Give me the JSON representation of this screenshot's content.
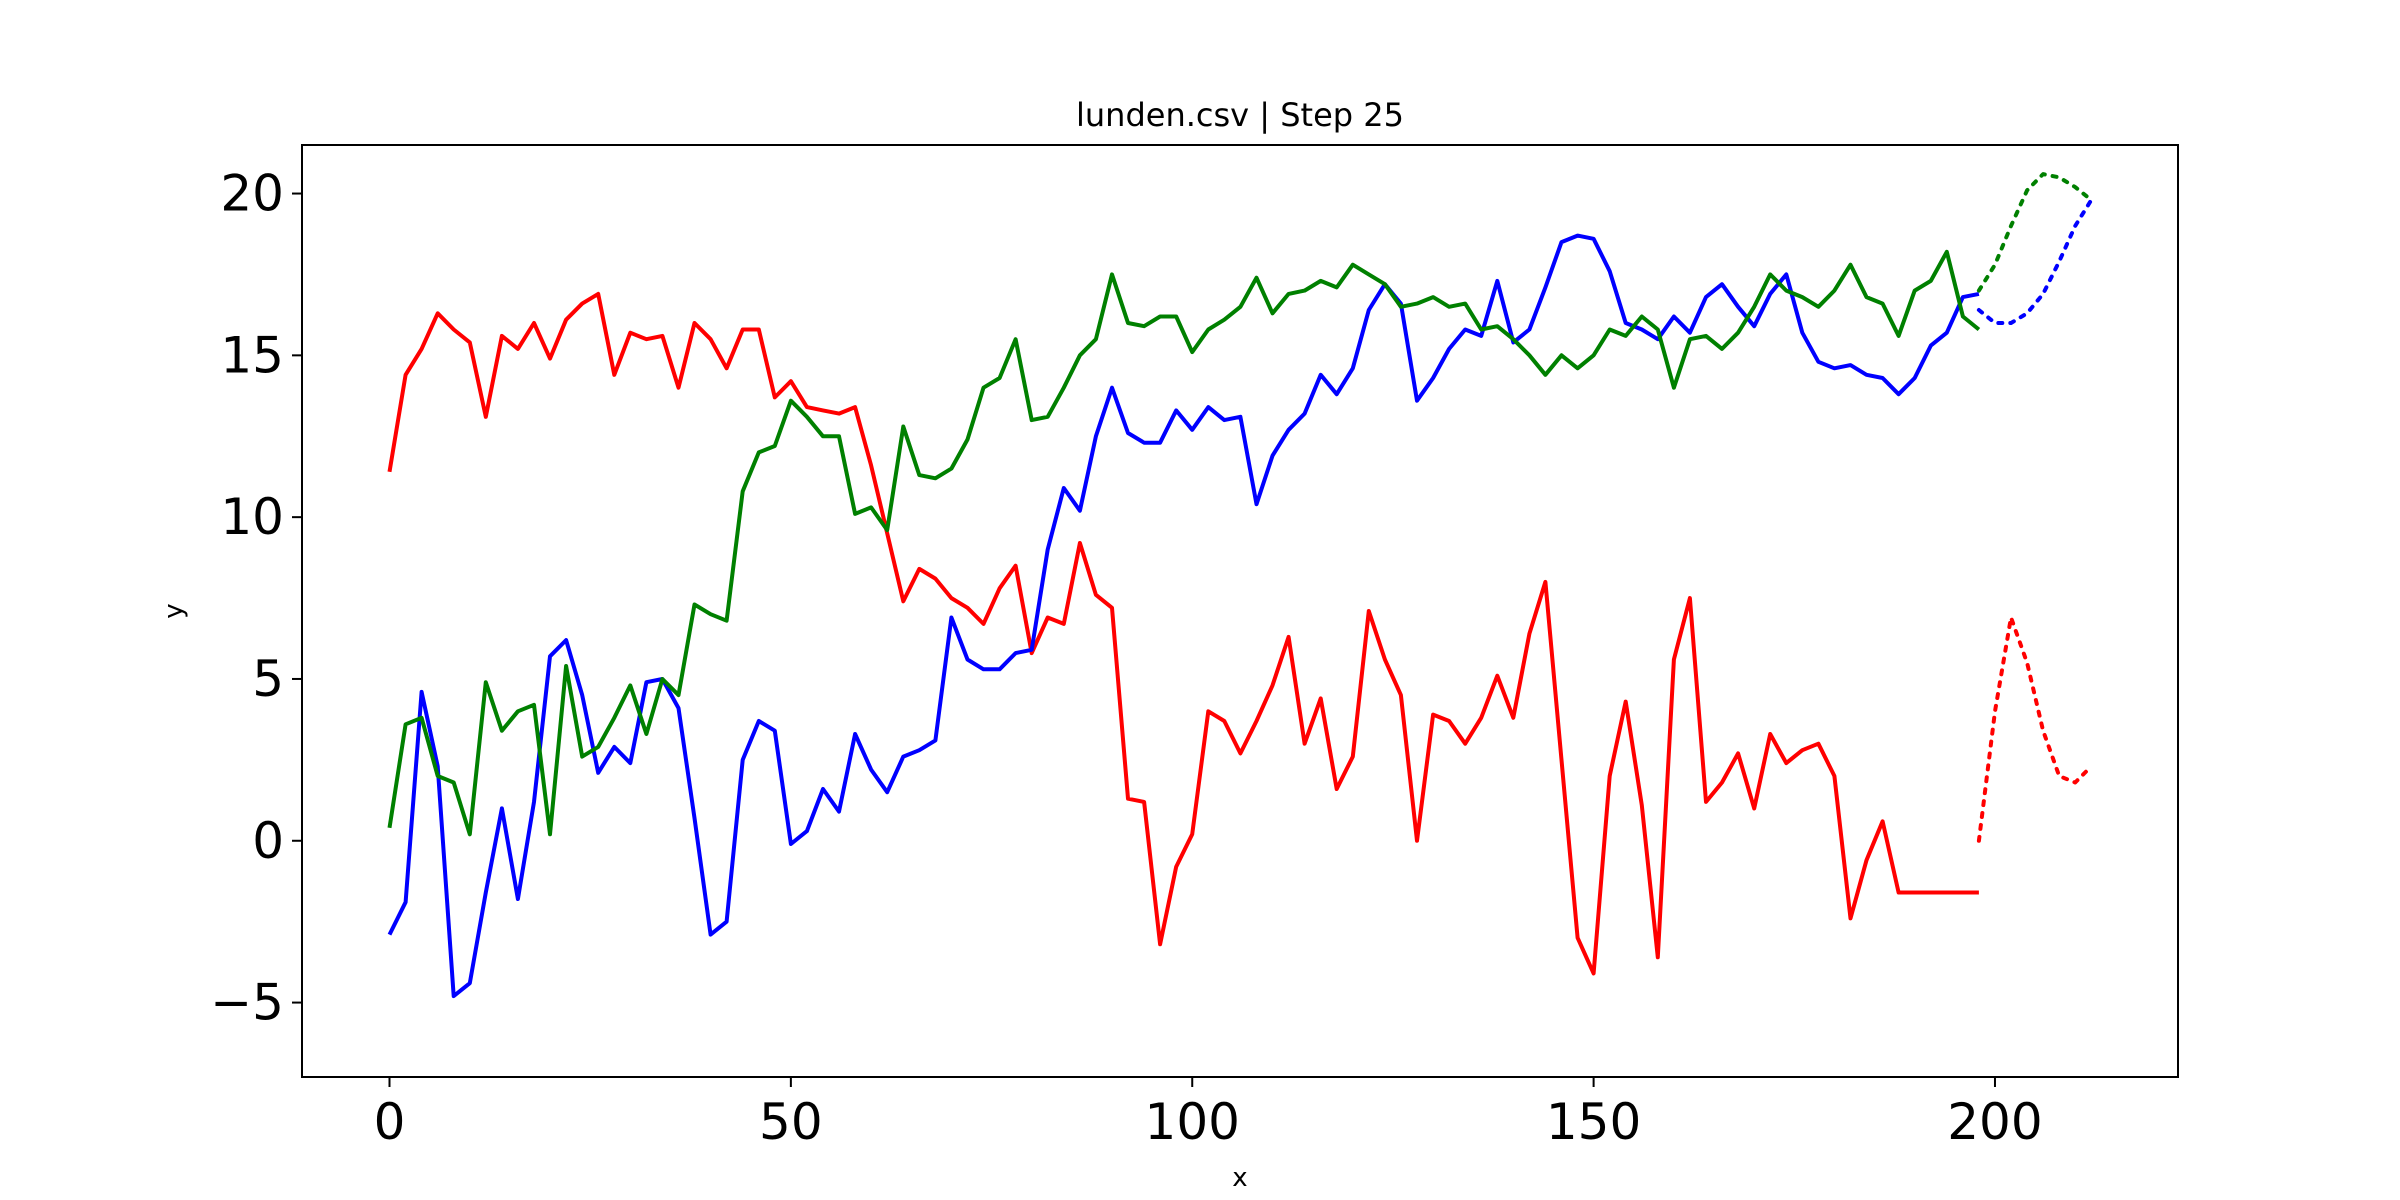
{
  "chart_data": {
    "type": "line",
    "title": "lunden.csv | Step 25",
    "xlabel": "x",
    "ylabel": "y",
    "xlim": [
      -10.9,
      222.8
    ],
    "ylim": [
      -7.3,
      21.5
    ],
    "xticks": [
      0,
      50,
      100,
      150,
      200
    ],
    "yticks": [
      -5,
      0,
      5,
      10,
      15,
      20
    ],
    "x_tick_labels": [
      "0",
      "50",
      "100",
      "150",
      "200"
    ],
    "y_tick_labels": [
      "−5",
      "0",
      "5",
      "10",
      "15",
      "20"
    ],
    "grid": false,
    "legend": "none",
    "series": [
      {
        "color": "#ff0000",
        "style": "solid",
        "x": [
          0,
          2,
          4,
          6,
          8,
          10,
          12,
          14,
          16,
          18,
          20,
          22,
          24,
          26,
          28,
          30,
          32,
          34,
          36,
          38,
          40,
          42,
          44,
          46,
          48,
          50,
          52,
          54,
          56,
          58,
          60,
          62,
          64,
          66,
          68,
          70,
          72,
          74,
          76,
          78,
          80,
          82,
          84,
          86,
          88,
          90,
          92,
          94,
          96,
          98,
          100,
          102,
          104,
          106,
          108,
          110,
          112,
          114,
          116,
          118,
          120,
          122,
          124,
          126,
          128,
          130,
          132,
          134,
          136,
          138,
          140,
          142,
          144,
          146,
          148,
          150,
          152,
          154,
          156,
          158,
          160,
          162,
          164,
          166,
          168,
          170,
          172,
          174,
          176,
          178,
          180,
          182,
          184,
          186,
          188,
          190,
          192,
          194,
          196,
          198
        ],
        "y": [
          11.4,
          14.4,
          15.2,
          16.3,
          15.8,
          15.4,
          13.1,
          15.6,
          15.2,
          16.0,
          14.9,
          16.1,
          16.6,
          16.9,
          14.4,
          15.7,
          15.5,
          15.6,
          14.0,
          16.0,
          15.5,
          14.6,
          15.8,
          15.8,
          13.7,
          14.2,
          13.4,
          13.3,
          13.2,
          13.4,
          11.6,
          9.5,
          7.4,
          8.4,
          8.1,
          7.5,
          7.2,
          6.7,
          7.8,
          8.5,
          5.8,
          6.9,
          6.7,
          9.2,
          7.6,
          7.2,
          1.3,
          1.2,
          -3.2,
          -0.8,
          0.2,
          4.0,
          3.7,
          2.7,
          3.7,
          4.8,
          6.3,
          3.0,
          4.4,
          1.6,
          2.6,
          7.1,
          5.6,
          4.5,
          -0.0,
          3.9,
          3.7,
          3.0,
          3.8,
          5.1,
          3.8,
          6.4,
          8.0,
          2.5,
          -3.0,
          -4.1,
          2.0,
          4.3,
          1.1,
          -3.6,
          5.6,
          7.5,
          1.2,
          1.8,
          2.7,
          1.0,
          3.3,
          2.4,
          2.8,
          3.0,
          2.0,
          -2.4,
          -0.6,
          0.6,
          -1.6,
          -1.6,
          -1.6,
          -1.6,
          -1.6,
          -1.6
        ]
      },
      {
        "color": "#0000ff",
        "style": "solid",
        "x": [
          0,
          2,
          4,
          6,
          8,
          10,
          12,
          14,
          16,
          18,
          20,
          22,
          24,
          26,
          28,
          30,
          32,
          34,
          36,
          38,
          40,
          42,
          44,
          46,
          48,
          50,
          52,
          54,
          56,
          58,
          60,
          62,
          64,
          66,
          68,
          70,
          72,
          74,
          76,
          78,
          80,
          82,
          84,
          86,
          88,
          90,
          92,
          94,
          96,
          98,
          100,
          102,
          104,
          106,
          108,
          110,
          112,
          114,
          116,
          118,
          120,
          122,
          124,
          126,
          128,
          130,
          132,
          134,
          136,
          138,
          140,
          142,
          144,
          146,
          148,
          150,
          152,
          154,
          156,
          158,
          160,
          162,
          164,
          166,
          168,
          170,
          172,
          174,
          176,
          178,
          180,
          182,
          184,
          186,
          188,
          190,
          192,
          194,
          196,
          198
        ],
        "y": [
          -2.9,
          -1.9,
          4.6,
          2.3,
          -4.8,
          -4.4,
          -1.6,
          1.0,
          -1.8,
          1.2,
          5.7,
          6.2,
          4.5,
          2.1,
          2.9,
          2.4,
          4.9,
          5.0,
          4.1,
          0.7,
          -2.9,
          -2.5,
          2.5,
          3.7,
          3.4,
          -0.1,
          0.3,
          1.6,
          0.9,
          3.3,
          2.2,
          1.5,
          2.6,
          2.8,
          3.1,
          6.9,
          5.6,
          5.3,
          5.3,
          5.8,
          5.9,
          9.0,
          10.9,
          10.2,
          12.5,
          14.0,
          12.6,
          12.3,
          12.3,
          13.3,
          12.7,
          13.4,
          13.0,
          13.1,
          10.4,
          11.9,
          12.7,
          13.2,
          14.4,
          13.8,
          14.6,
          16.4,
          17.2,
          16.6,
          13.6,
          14.3,
          15.2,
          15.8,
          15.6,
          17.3,
          15.4,
          15.8,
          17.1,
          18.5,
          18.7,
          18.6,
          17.6,
          16.0,
          15.8,
          15.5,
          16.2,
          15.7,
          16.8,
          17.2,
          16.5,
          15.9,
          16.9,
          17.5,
          15.7,
          14.8,
          14.6,
          14.7,
          14.4,
          14.3,
          13.8,
          14.3,
          15.3,
          15.7,
          16.8,
          16.9
        ]
      },
      {
        "color": "#008000",
        "style": "solid",
        "x": [
          0,
          2,
          4,
          6,
          8,
          10,
          12,
          14,
          16,
          18,
          20,
          22,
          24,
          26,
          28,
          30,
          32,
          34,
          36,
          38,
          40,
          42,
          44,
          46,
          48,
          50,
          52,
          54,
          56,
          58,
          60,
          62,
          64,
          66,
          68,
          70,
          72,
          74,
          76,
          78,
          80,
          82,
          84,
          86,
          88,
          90,
          92,
          94,
          96,
          98,
          100,
          102,
          104,
          106,
          108,
          110,
          112,
          114,
          116,
          118,
          120,
          122,
          124,
          126,
          128,
          130,
          132,
          134,
          136,
          138,
          140,
          142,
          144,
          146,
          148,
          150,
          152,
          154,
          156,
          158,
          160,
          162,
          164,
          166,
          168,
          170,
          172,
          174,
          176,
          178,
          180,
          182,
          184,
          186,
          188,
          190,
          192,
          194,
          196,
          198
        ],
        "y": [
          0.4,
          3.6,
          3.8,
          2.0,
          1.8,
          0.2,
          4.9,
          3.4,
          4.0,
          4.2,
          0.2,
          5.4,
          2.6,
          2.9,
          3.8,
          4.8,
          3.3,
          5.0,
          4.5,
          7.3,
          7.0,
          6.8,
          10.8,
          12.0,
          12.2,
          13.6,
          13.1,
          12.5,
          12.5,
          10.1,
          10.3,
          9.6,
          12.8,
          11.3,
          11.2,
          11.5,
          12.4,
          14.0,
          14.3,
          15.5,
          13.0,
          13.1,
          14.0,
          15.0,
          15.5,
          17.5,
          16.0,
          15.9,
          16.2,
          16.2,
          15.1,
          15.8,
          16.1,
          16.5,
          17.4,
          16.3,
          16.9,
          17.0,
          17.3,
          17.1,
          17.8,
          17.5,
          17.2,
          16.5,
          16.6,
          16.8,
          16.5,
          16.6,
          15.8,
          15.9,
          15.5,
          15.0,
          14.4,
          15.0,
          14.6,
          15.0,
          15.8,
          15.6,
          16.2,
          15.8,
          14.0,
          15.5,
          15.6,
          15.2,
          15.7,
          16.5,
          17.5,
          17.0,
          16.8,
          16.5,
          17.0,
          17.8,
          16.8,
          16.6,
          15.6,
          17.0,
          17.3,
          18.2,
          16.2,
          15.8
        ]
      },
      {
        "color": "#ff0000",
        "style": "dotted",
        "x": [
          198,
          200,
          202,
          204,
          206,
          208,
          210,
          212
        ],
        "y": [
          0.0,
          4.0,
          6.9,
          5.5,
          3.4,
          2.0,
          1.8,
          2.3
        ]
      },
      {
        "color": "#0000ff",
        "style": "dotted",
        "x": [
          198,
          200,
          202,
          204,
          206,
          208,
          210,
          212
        ],
        "y": [
          16.4,
          16.0,
          16.0,
          16.3,
          16.9,
          17.9,
          19.0,
          19.8
        ]
      },
      {
        "color": "#008000",
        "style": "dotted",
        "x": [
          198,
          200,
          202,
          204,
          206,
          208,
          210,
          212
        ],
        "y": [
          17.0,
          17.8,
          19.0,
          20.1,
          20.6,
          20.5,
          20.2,
          19.8
        ]
      }
    ]
  }
}
